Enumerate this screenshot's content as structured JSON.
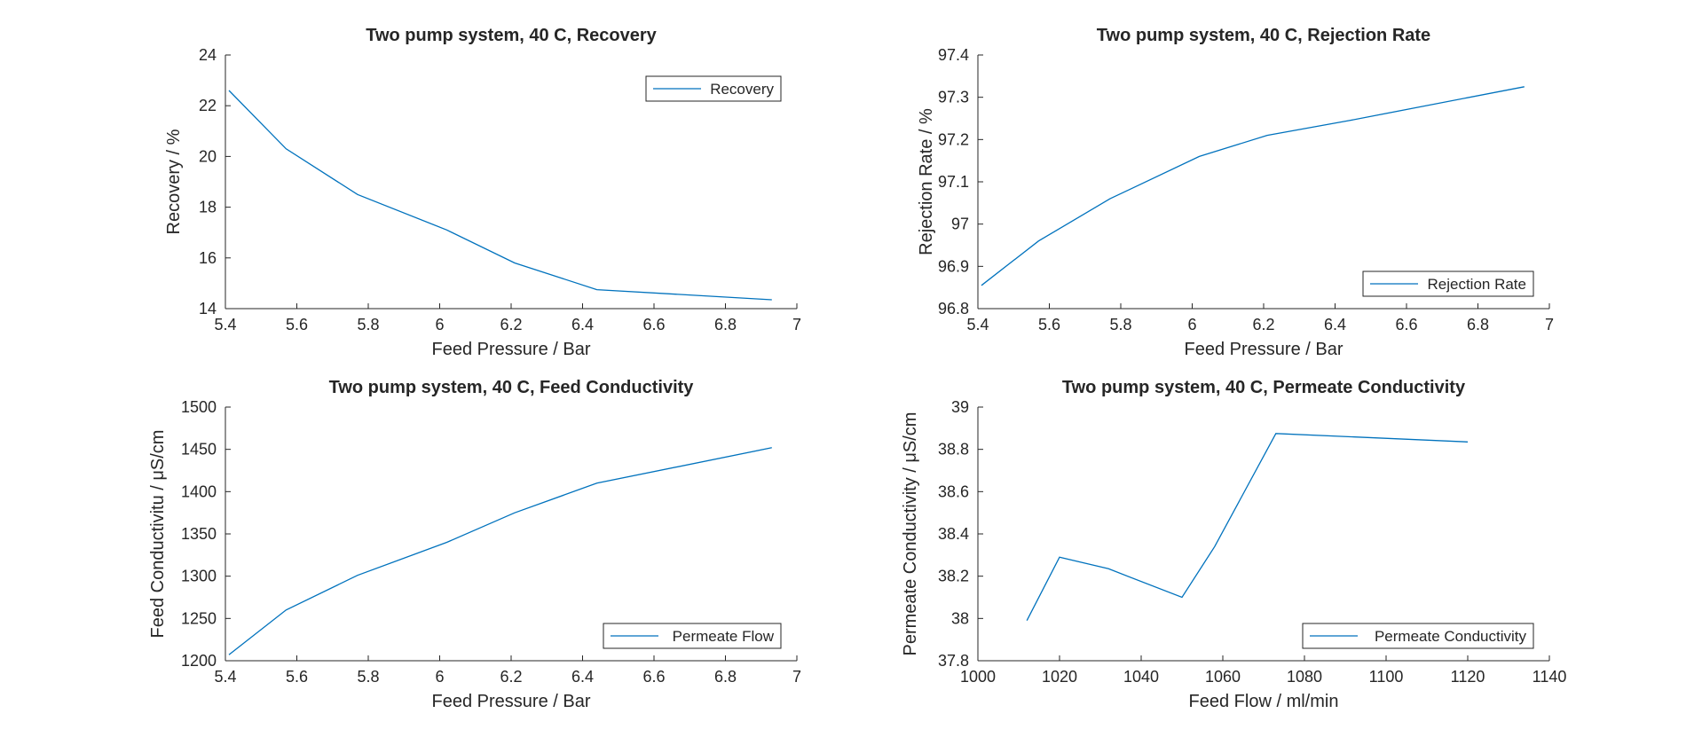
{
  "chart_data": [
    {
      "type": "line",
      "title": "Two pump system, 40 C, Recovery",
      "xlabel": "Feed Pressure / Bar",
      "ylabel": "Recovery / %",
      "xlim": [
        5.4,
        7
      ],
      "ylim": [
        14,
        24
      ],
      "xticks": [
        5.4,
        5.6,
        5.8,
        6,
        6.2,
        6.4,
        6.6,
        6.8,
        7
      ],
      "yticks": [
        14,
        16,
        18,
        20,
        22,
        24
      ],
      "legend_position": "top-right",
      "color": "#0072BD",
      "series": [
        {
          "name": "Recovery",
          "x": [
            5.41,
            5.57,
            5.77,
            6.02,
            6.21,
            6.44,
            6.93
          ],
          "y": [
            22.6,
            20.3,
            18.5,
            17.1,
            15.8,
            14.75,
            14.35
          ]
        }
      ]
    },
    {
      "type": "line",
      "title": "Two pump system, 40 C, Rejection Rate",
      "xlabel": "Feed Pressure / Bar",
      "ylabel": "Rejection Rate / %",
      "xlim": [
        5.4,
        7
      ],
      "ylim": [
        96.8,
        97.4
      ],
      "xticks": [
        5.4,
        5.6,
        5.8,
        6,
        6.2,
        6.4,
        6.6,
        6.8,
        7
      ],
      "yticks": [
        96.8,
        96.9,
        97,
        97.1,
        97.2,
        97.3,
        97.4
      ],
      "legend_position": "bottom-right",
      "color": "#0072BD",
      "series": [
        {
          "name": "Rejection Rate",
          "x": [
            5.41,
            5.57,
            5.77,
            6.02,
            6.21,
            6.44,
            6.93
          ],
          "y": [
            96.855,
            96.96,
            97.06,
            97.16,
            97.21,
            97.245,
            97.325
          ]
        }
      ]
    },
    {
      "type": "line",
      "title": "Two pump system, 40 C, Feed Conductivity",
      "xlabel": "Feed Pressure / Bar",
      "ylabel": "Feed Conductivitu / μS/cm",
      "xlim": [
        5.4,
        7
      ],
      "ylim": [
        1200,
        1500
      ],
      "xticks": [
        5.4,
        5.6,
        5.8,
        6,
        6.2,
        6.4,
        6.6,
        6.8,
        7
      ],
      "yticks": [
        1200,
        1250,
        1300,
        1350,
        1400,
        1450,
        1500
      ],
      "legend_position": "bottom-right",
      "color": "#0072BD",
      "series": [
        {
          "name": "Permeate Flow",
          "x": [
            5.41,
            5.57,
            5.77,
            6.02,
            6.21,
            6.44,
            6.93
          ],
          "y": [
            1207,
            1260,
            1301,
            1340,
            1375,
            1410,
            1452
          ]
        }
      ]
    },
    {
      "type": "line",
      "title": "Two pump system, 40 C, Permeate Conductivity",
      "xlabel": "Feed Flow / ml/min",
      "ylabel": "Permeate Conductivity / μS/cm",
      "xlim": [
        1000,
        1140
      ],
      "ylim": [
        37.8,
        39
      ],
      "xticks": [
        1000,
        1020,
        1040,
        1060,
        1080,
        1100,
        1120,
        1140
      ],
      "yticks": [
        37.8,
        38,
        38.2,
        38.4,
        38.6,
        38.8,
        39
      ],
      "legend_position": "bottom-right",
      "color": "#0072BD",
      "series": [
        {
          "name": "Permeate Conductivity",
          "x": [
            1012,
            1020,
            1032,
            1050,
            1058,
            1073,
            1120
          ],
          "y": [
            37.99,
            38.29,
            38.235,
            38.1,
            38.34,
            38.875,
            38.835
          ]
        }
      ]
    }
  ]
}
